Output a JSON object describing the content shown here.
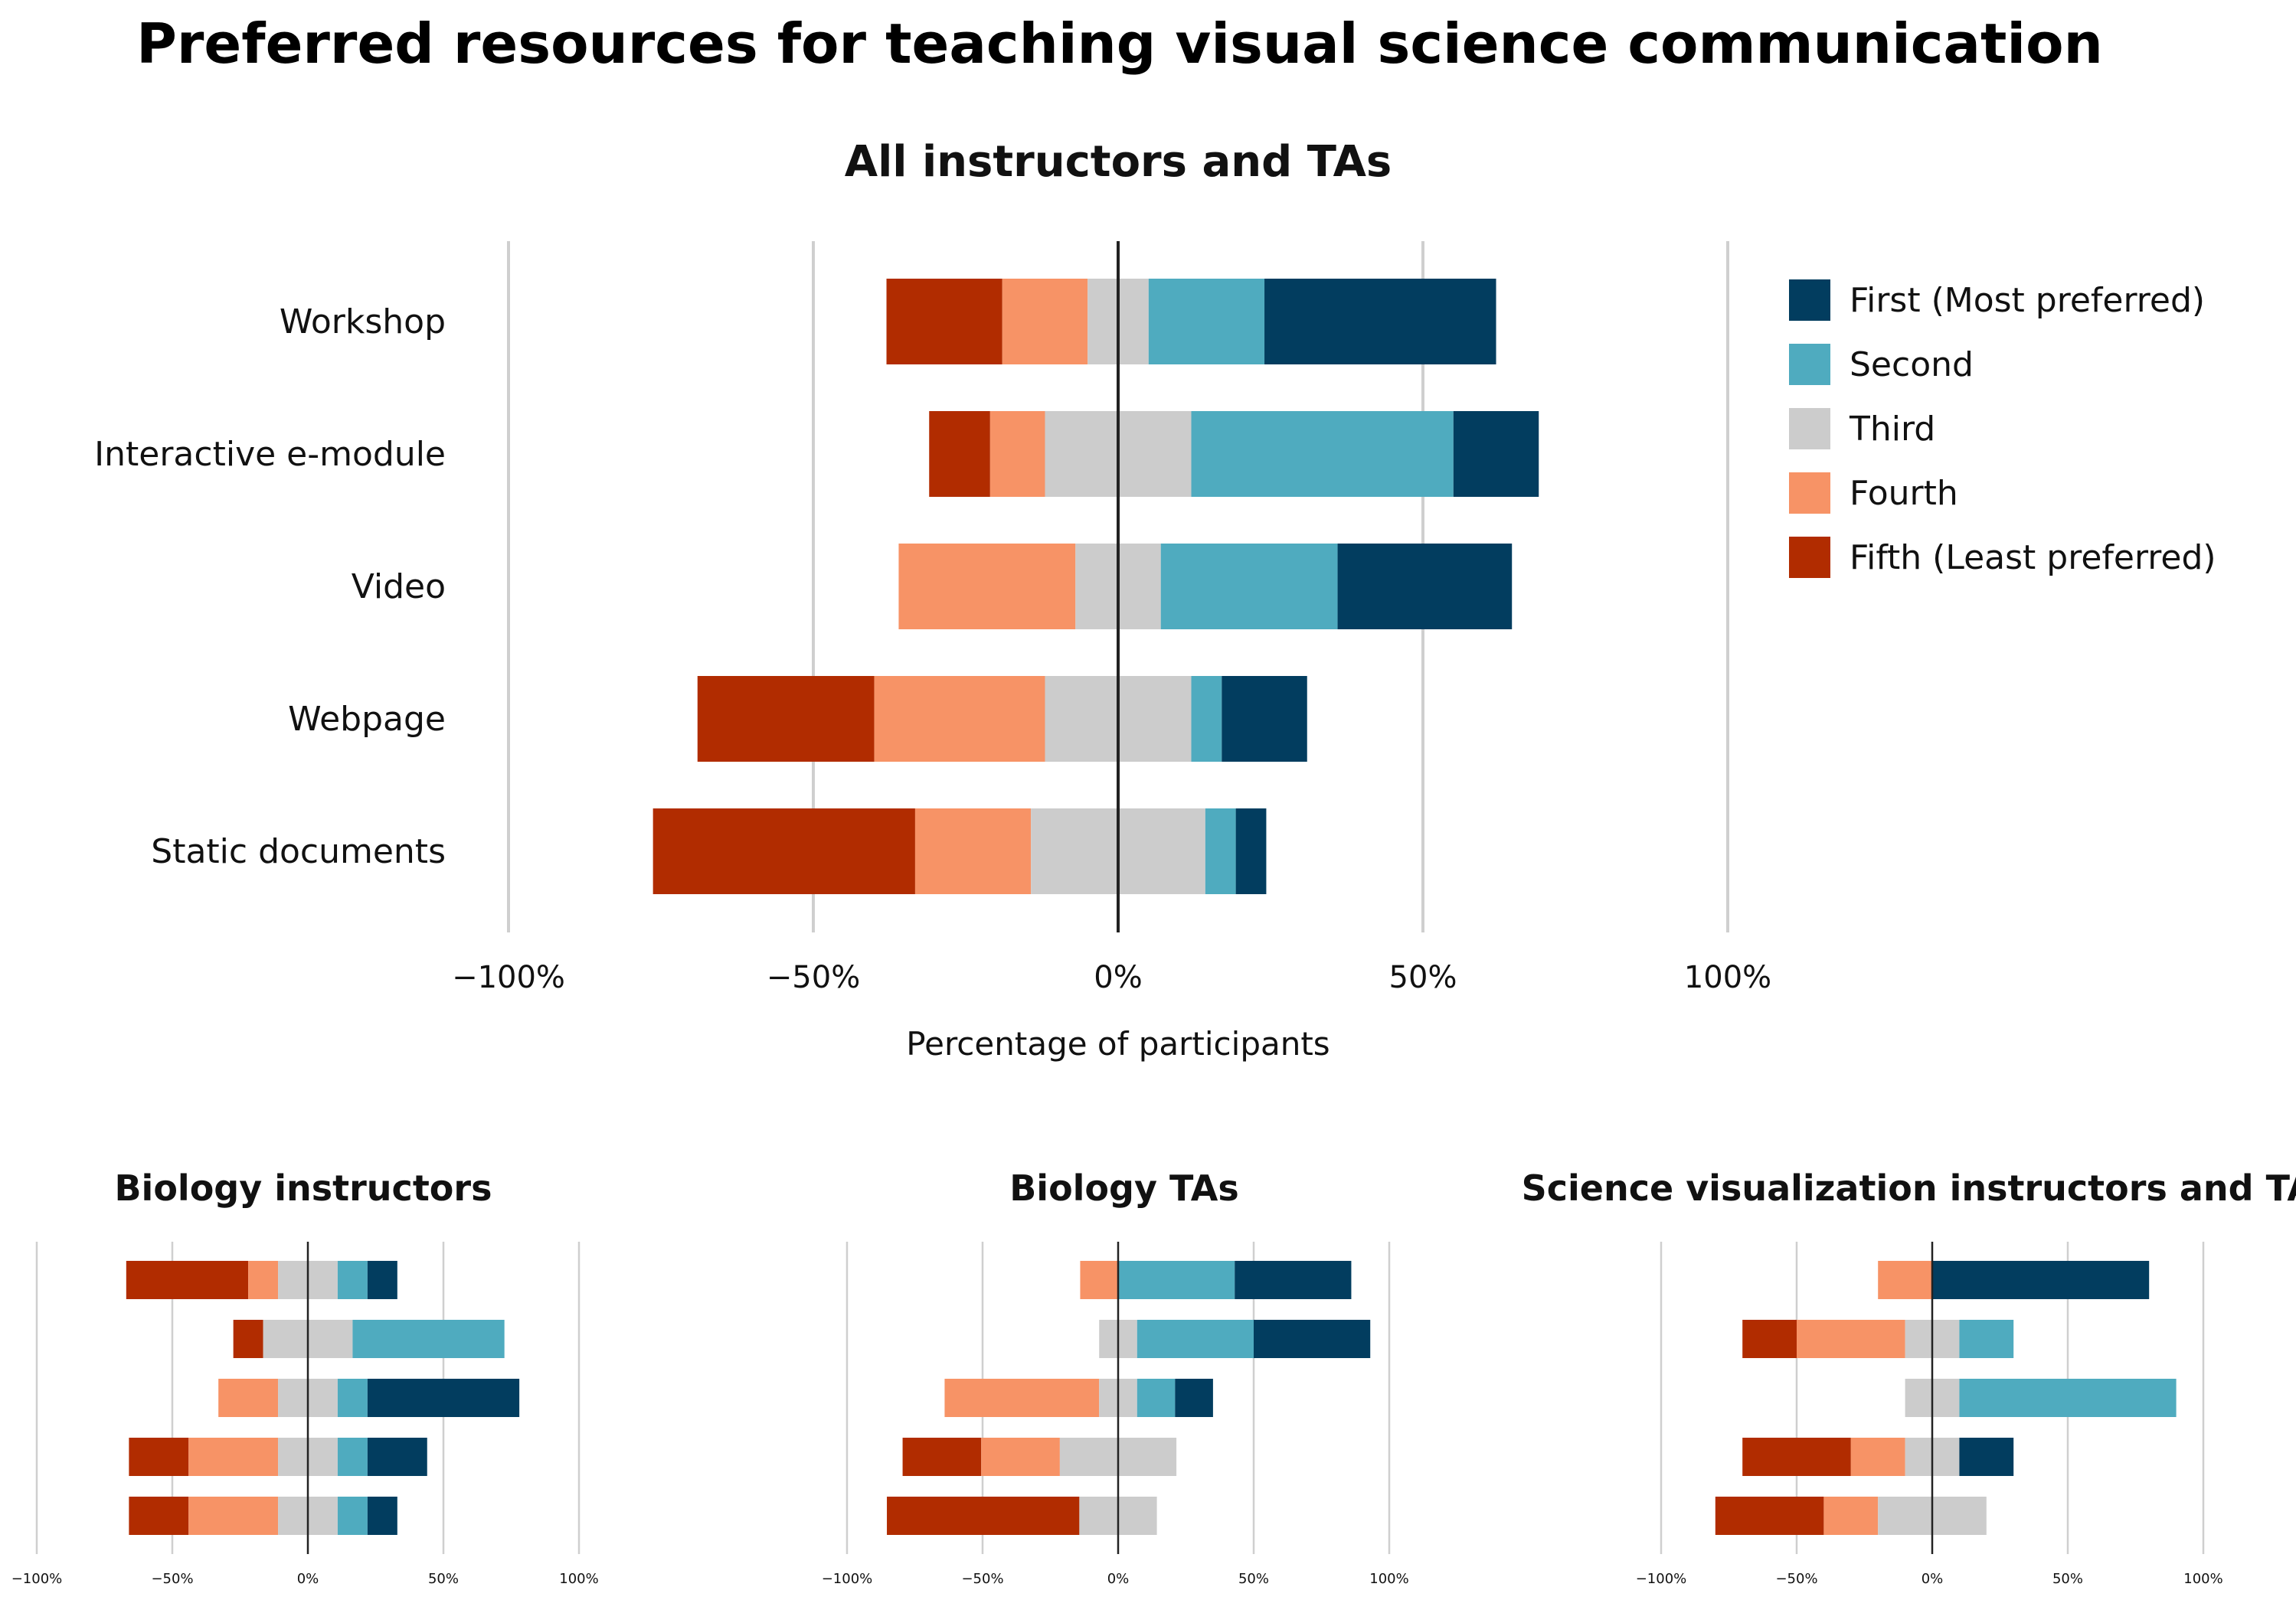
{
  "main_title": "Preferred resources for teaching visual science communication",
  "colors": {
    "first": "#023d5f",
    "second": "#4fabbf",
    "third": "#cccccc",
    "fourth": "#f79366",
    "fifth": "#b12c00",
    "gridline": "#cfcfcf",
    "zeroline": "#222222"
  },
  "legend": [
    {
      "key": "first",
      "label": "First (Most preferred)"
    },
    {
      "key": "second",
      "label": "Second"
    },
    {
      "key": "third",
      "label": "Third"
    },
    {
      "key": "fourth",
      "label": "Fourth"
    },
    {
      "key": "fifth",
      "label": "Fifth (Least preferred)"
    }
  ],
  "chart_data": [
    {
      "type": "bar",
      "orientation": "horizontal",
      "stacked": "diverging",
      "title": "All instructors and TAs",
      "xlabel": "Percentage of participants",
      "xlim": [
        -100,
        100
      ],
      "xticks": [
        -100,
        -50,
        0,
        50,
        100
      ],
      "xtick_labels": [
        "−100%",
        "−50%",
        "0%",
        "50%",
        "100%"
      ],
      "categories": [
        "Workshop",
        "Interactive e-module",
        "Video",
        "Webpage",
        "Static documents"
      ],
      "series": [
        {
          "name": "Fifth (Least preferred)",
          "key": "fifth",
          "values": [
            19,
            10,
            0,
            29,
            43
          ]
        },
        {
          "name": "Fourth",
          "key": "fourth",
          "values": [
            14,
            9,
            29,
            28,
            19
          ]
        },
        {
          "name": "Third",
          "key": "third",
          "values": [
            10,
            24,
            14,
            24,
            28.6
          ]
        },
        {
          "name": "Second",
          "key": "second",
          "values": [
            19,
            43,
            29,
            5,
            5
          ]
        },
        {
          "name": "First (Most preferred)",
          "key": "first",
          "values": [
            38,
            14,
            28.6,
            14,
            5
          ]
        }
      ]
    },
    {
      "type": "bar",
      "orientation": "horizontal",
      "stacked": "diverging",
      "title": "Biology instructors",
      "xlim": [
        -100,
        100
      ],
      "xticks": [
        -100,
        -50,
        0,
        50,
        100
      ],
      "xtick_labels": [
        "−100%",
        "−50%",
        "0%",
        "50%",
        "100%"
      ],
      "categories": [
        "Workshop",
        "Interactive e-module",
        "Video",
        "Webpage",
        "Static documents"
      ],
      "series": [
        {
          "name": "Fifth (Least preferred)",
          "key": "fifth",
          "values": [
            45,
            11,
            0,
            22,
            22
          ]
        },
        {
          "name": "Fourth",
          "key": "fourth",
          "values": [
            11,
            0,
            22,
            33,
            33
          ]
        },
        {
          "name": "Third",
          "key": "third",
          "values": [
            22,
            33,
            22,
            22,
            22
          ]
        },
        {
          "name": "Second",
          "key": "second",
          "values": [
            11,
            56,
            11,
            11,
            11
          ]
        },
        {
          "name": "First (Most preferred)",
          "key": "first",
          "values": [
            11,
            0,
            56,
            22,
            11
          ]
        }
      ]
    },
    {
      "type": "bar",
      "orientation": "horizontal",
      "stacked": "diverging",
      "title": "Biology TAs",
      "xlim": [
        -100,
        100
      ],
      "xticks": [
        -100,
        -50,
        0,
        50,
        100
      ],
      "xtick_labels": [
        "−100%",
        "−50%",
        "0%",
        "50%",
        "100%"
      ],
      "categories": [
        "Workshop",
        "Interactive e-module",
        "Video",
        "Webpage",
        "Static documents"
      ],
      "series": [
        {
          "name": "Fifth (Least preferred)",
          "key": "fifth",
          "values": [
            0,
            0,
            0,
            29,
            71
          ]
        },
        {
          "name": "Fourth",
          "key": "fourth",
          "values": [
            14,
            0,
            57,
            29,
            0
          ]
        },
        {
          "name": "Third",
          "key": "third",
          "values": [
            0,
            14,
            14,
            43,
            28.6
          ]
        },
        {
          "name": "Second",
          "key": "second",
          "values": [
            43,
            43,
            14,
            0,
            0
          ]
        },
        {
          "name": "First (Most preferred)",
          "key": "first",
          "values": [
            43,
            43,
            14,
            0,
            0
          ]
        }
      ]
    },
    {
      "type": "bar",
      "orientation": "horizontal",
      "stacked": "diverging",
      "title": "Science visualization instructors and TAs",
      "xlim": [
        -100,
        100
      ],
      "xticks": [
        -100,
        -50,
        0,
        50,
        100
      ],
      "xtick_labels": [
        "−100%",
        "−50%",
        "0%",
        "50%",
        "100%"
      ],
      "categories": [
        "Workshop",
        "Interactive e-module",
        "Video",
        "Webpage",
        "Static documents"
      ],
      "series": [
        {
          "name": "Fifth (Least preferred)",
          "key": "fifth",
          "values": [
            0,
            20,
            0,
            40,
            40
          ]
        },
        {
          "name": "Fourth",
          "key": "fourth",
          "values": [
            20,
            40,
            0,
            20,
            20
          ]
        },
        {
          "name": "Third",
          "key": "third",
          "values": [
            0,
            20,
            20,
            20,
            40
          ]
        },
        {
          "name": "Second",
          "key": "second",
          "values": [
            0,
            20,
            80,
            0,
            0
          ]
        },
        {
          "name": "First (Most preferred)",
          "key": "first",
          "values": [
            80,
            0,
            0,
            20,
            0
          ]
        }
      ]
    }
  ]
}
